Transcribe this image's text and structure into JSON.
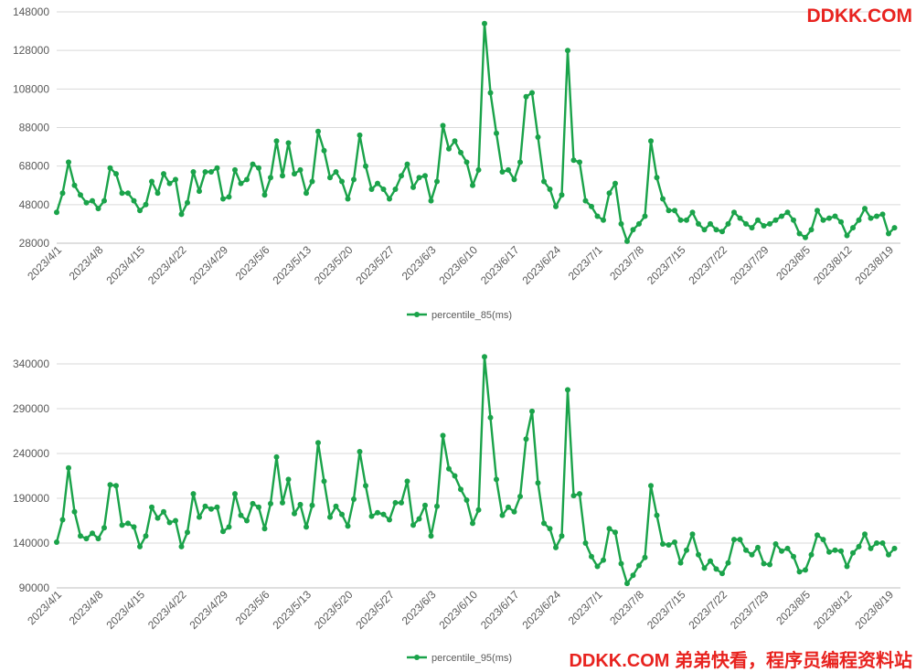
{
  "watermarks": {
    "top": "DDKK.COM",
    "bottom": "DDKK.COM 弟弟快看，程序员编程资料站"
  },
  "colors": {
    "series": "#1aa34a",
    "grid": "#d9d9d9",
    "axis": "#bfbfbf"
  },
  "chart_data": [
    {
      "type": "line",
      "title": "",
      "xlabel": "",
      "ylabel": "",
      "legend_position": "bottom",
      "grid": true,
      "ylim": [
        28000,
        148000
      ],
      "yticks": [
        28000,
        48000,
        68000,
        88000,
        108000,
        128000,
        148000
      ],
      "xticks": [
        "2023/4/1",
        "2023/4/8",
        "2023/4/15",
        "2023/4/22",
        "2023/4/29",
        "2023/5/6",
        "2023/5/13",
        "2023/5/20",
        "2023/5/27",
        "2023/6/3",
        "2023/6/10",
        "2023/6/17",
        "2023/6/24",
        "2023/7/1",
        "2023/7/8",
        "2023/7/15",
        "2023/7/22",
        "2023/7/29",
        "2023/8/5",
        "2023/8/12",
        "2023/8/19"
      ],
      "x_start": "2023/4/1",
      "x_end": "2023/8/21",
      "series": [
        {
          "name": "percentile_85(ms)",
          "values": [
            44000,
            54000,
            70000,
            58000,
            53000,
            49000,
            50000,
            46000,
            50000,
            67000,
            64000,
            54000,
            54000,
            50000,
            45000,
            48000,
            60000,
            54000,
            64000,
            59000,
            61000,
            43000,
            49000,
            65000,
            55000,
            65000,
            65000,
            67000,
            51000,
            52000,
            66000,
            59000,
            61000,
            69000,
            67000,
            53000,
            62000,
            81000,
            63000,
            80000,
            64000,
            66000,
            54000,
            60000,
            86000,
            76000,
            62000,
            65000,
            60000,
            51000,
            61000,
            84000,
            68000,
            56000,
            59000,
            56000,
            51000,
            56000,
            63000,
            69000,
            57000,
            62000,
            63000,
            50000,
            60000,
            89000,
            77000,
            81000,
            75000,
            70000,
            58000,
            66000,
            142000,
            106000,
            85000,
            65000,
            66000,
            61000,
            70000,
            104000,
            106000,
            83000,
            60000,
            56000,
            47000,
            53000,
            128000,
            71000,
            70000,
            50000,
            47000,
            42000,
            40000,
            54000,
            59000,
            38000,
            29000,
            35000,
            38000,
            42000,
            81000,
            62000,
            51000,
            45000,
            45000,
            40000,
            40000,
            44000,
            38000,
            35000,
            38000,
            35000,
            34000,
            38000,
            44000,
            41000,
            38000,
            36000,
            40000,
            37000,
            38000,
            40000,
            42000,
            44000,
            40000,
            33000,
            31000,
            35000,
            45000,
            40000,
            41000,
            42000,
            39000,
            32000,
            36000,
            40000,
            46000,
            41000,
            42000,
            43000,
            33000,
            36000
          ]
        }
      ]
    },
    {
      "type": "line",
      "title": "",
      "xlabel": "",
      "ylabel": "",
      "legend_position": "bottom",
      "grid": true,
      "ylim": [
        90000,
        340000
      ],
      "yticks": [
        90000,
        140000,
        190000,
        240000,
        290000,
        340000
      ],
      "xticks": [
        "2023/4/1",
        "2023/4/8",
        "2023/4/15",
        "2023/4/22",
        "2023/4/29",
        "2023/5/6",
        "2023/5/13",
        "2023/5/20",
        "2023/5/27",
        "2023/6/3",
        "2023/6/10",
        "2023/6/17",
        "2023/6/24",
        "2023/7/1",
        "2023/7/8",
        "2023/7/15",
        "2023/7/22",
        "2023/7/29",
        "2023/8/5",
        "2023/8/12",
        "2023/8/19"
      ],
      "x_start": "2023/4/1",
      "x_end": "2023/8/21",
      "series": [
        {
          "name": "percentile_95(ms)",
          "values": [
            141000,
            166000,
            224000,
            175000,
            148000,
            145000,
            151000,
            145000,
            157000,
            205000,
            204000,
            160000,
            162000,
            158000,
            136000,
            148000,
            180000,
            168000,
            175000,
            163000,
            165000,
            136000,
            152000,
            195000,
            169000,
            181000,
            178000,
            180000,
            153000,
            158000,
            195000,
            171000,
            165000,
            184000,
            180000,
            156000,
            184000,
            236000,
            185000,
            211000,
            173000,
            183000,
            158000,
            182000,
            252000,
            209000,
            169000,
            181000,
            172000,
            159000,
            189000,
            242000,
            204000,
            170000,
            174000,
            172000,
            166000,
            185000,
            185000,
            209000,
            160000,
            167000,
            182000,
            148000,
            181000,
            260000,
            223000,
            215000,
            200000,
            188000,
            162000,
            177000,
            348000,
            280000,
            211000,
            171000,
            180000,
            175000,
            192000,
            256000,
            287000,
            207000,
            162000,
            156000,
            135000,
            148000,
            311000,
            193000,
            195000,
            140000,
            125000,
            114000,
            121000,
            156000,
            152000,
            117000,
            95000,
            104000,
            115000,
            124000,
            204000,
            171000,
            139000,
            138000,
            141000,
            118000,
            132000,
            150000,
            127000,
            112000,
            120000,
            111000,
            106000,
            118000,
            144000,
            144000,
            132000,
            127000,
            135000,
            117000,
            116000,
            139000,
            131000,
            134000,
            125000,
            108000,
            110000,
            127000,
            149000,
            144000,
            130000,
            132000,
            131000,
            114000,
            129000,
            136000,
            150000,
            134000,
            140000,
            140000,
            127000,
            134000
          ]
        }
      ]
    }
  ]
}
